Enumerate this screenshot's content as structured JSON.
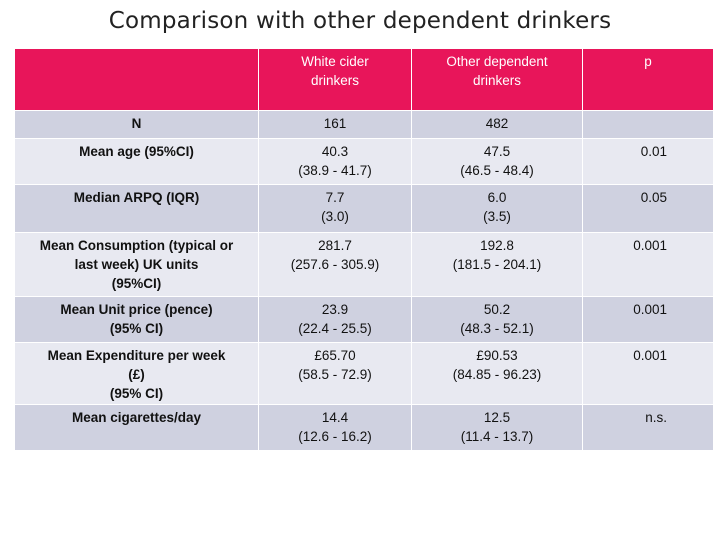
{
  "slide": {
    "title": "Comparison with other dependent drinkers"
  },
  "colors": {
    "header_bg": "#e8155a",
    "row_dark": "#cfd1e0",
    "row_light": "#e8e9f1"
  },
  "table": {
    "headers": [
      "",
      "White cider\ndrinkers",
      "Other dependent\ndrinkers",
      "p"
    ],
    "rows": [
      {
        "label": "N",
        "white_cider": "161",
        "other": "482",
        "p": ""
      },
      {
        "label": "Mean age (95%CI)",
        "white_cider": "40.3\n(38.9 - 41.7)",
        "other": "47.5\n(46.5 - 48.4)",
        "p": "0.01"
      },
      {
        "label": "Median ARPQ  (IQR)",
        "white_cider": "7.7\n(3.0)",
        "other": "6.0\n(3.5)",
        "p": "0.05"
      },
      {
        "label": "Mean Consumption (typical or\nlast week) UK units\n(95%CI)",
        "white_cider": "281.7\n(257.6 - 305.9)",
        "other": "192.8\n(181.5 - 204.1)",
        "p": "0.001"
      },
      {
        "label": "Mean Unit price (pence)\n(95% CI)",
        "white_cider": "23.9\n(22.4 - 25.5)",
        "other": "50.2\n(48.3 - 52.1)",
        "p": "0.001"
      },
      {
        "label": "Mean Expenditure per week\n(£)\n(95% CI)",
        "white_cider": "£65.70\n(58.5 - 72.9)",
        "other": "£90.53\n(84.85 - 96.23)",
        "p": "0.001"
      },
      {
        "label": "Mean cigarettes/day",
        "white_cider": "14.4\n(12.6 - 16.2)",
        "other": "12.5\n(11.4 - 13.7)",
        "p": "n.s."
      }
    ]
  }
}
